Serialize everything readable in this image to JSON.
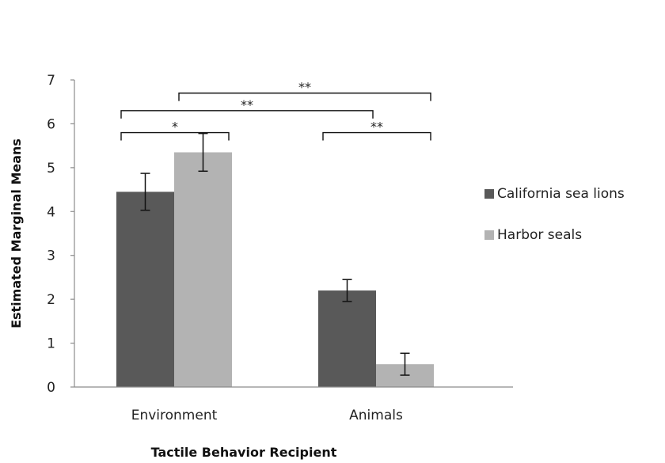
{
  "chart_data": {
    "type": "bar",
    "title": "",
    "xlabel": "Tactile Behavior Recipient",
    "ylabel": "Estimated Marginal Means",
    "ylim": [
      0,
      7
    ],
    "yticks": [
      0,
      1,
      2,
      3,
      4,
      5,
      6,
      7
    ],
    "categories": [
      "Environment",
      "Animals"
    ],
    "series": [
      {
        "name": "California sea lions",
        "color": "#595959",
        "values": [
          4.45,
          2.2
        ],
        "errors": [
          0.42,
          0.25
        ]
      },
      {
        "name": "Harbor seals",
        "color": "#b3b3b3",
        "values": [
          5.35,
          0.52
        ],
        "errors": [
          0.43,
          0.25
        ]
      }
    ],
    "legend": "right",
    "grid": false,
    "significance": [
      {
        "from": "Environment|California sea lions",
        "to": "Environment|Harbor seals",
        "label": "*",
        "level": 5.8
      },
      {
        "from": "Environment|California sea lions",
        "to": "Animals|California sea lions",
        "label": "**",
        "level": 6.3
      },
      {
        "from": "Environment|Harbor seals",
        "to": "Animals|Harbor seals",
        "label": "**",
        "level": 6.7
      },
      {
        "from": "Animals|California sea lions",
        "to": "Animals|Harbor seals",
        "label": "**",
        "level": 5.8
      }
    ]
  }
}
